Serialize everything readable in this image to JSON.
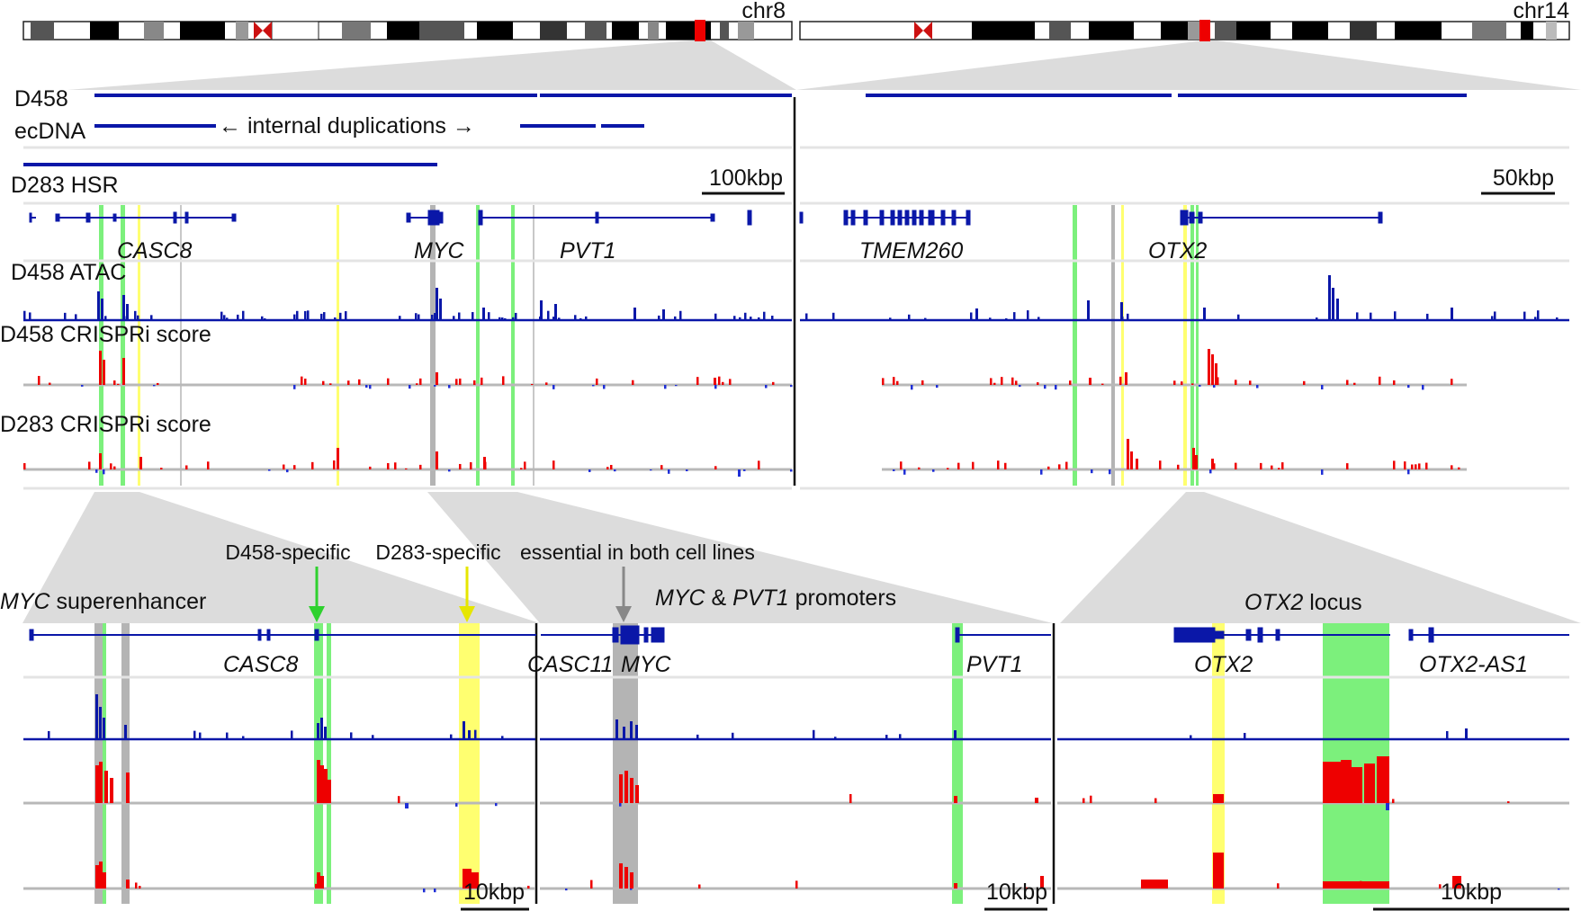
{
  "colors": {
    "gene": "#0a17a8",
    "atac": "#0a17a8",
    "crispr_pos": "#ee0000",
    "crispr_neg": "#1f2fd6",
    "baseline": "#b8b8b8",
    "track_sep": "#e4e4e4",
    "d458_specific": "#7cf07c",
    "d283_specific": "#ffff70",
    "essential_both": "#b4b4b4",
    "zoom_fill": "#dcdcdc",
    "centromere": "#cc1111",
    "highlight_band": "#ee0000"
  },
  "chromosomes": {
    "left": "chr8",
    "right": "chr14"
  },
  "tracks": {
    "d458_ecdna_line1": "D458",
    "d458_ecdna_line2": "ecDNA",
    "internal_dup": "← internal duplications →",
    "d283_hsr": "D283 HSR",
    "d458_atac": "D458 ATAC",
    "d458_crispri": "D458 CRISPRi score",
    "d283_crispri": "D283 CRISPRi score"
  },
  "scalebars": {
    "chr8": "100kbp",
    "chr14": "50kbp",
    "superenhancer": "10kbp",
    "promoters": "10kbp",
    "otx2": "10kbp"
  },
  "genes_top": {
    "casc8": "CASC8",
    "myc": "MYC",
    "pvt1": "PVT1",
    "tmem260": "TMEM260",
    "otx2": "OTX2"
  },
  "annotations": {
    "d458_specific": "D458-specific",
    "d283_specific": "D283-specific",
    "essential": "essential in both cell lines"
  },
  "zoom_titles": {
    "superenhancer_gene": "MYC",
    "superenhancer_rest": " superenhancer",
    "promoters_g1": "MYC",
    "promoters_amp": " & ",
    "promoters_g2": "PVT1",
    "promoters_rest": " promoters",
    "otx2_gene": "OTX2",
    "otx2_rest": " locus"
  },
  "genes_zoom": {
    "casc8": "CASC8",
    "casc11": "CASC11",
    "myc": "MYC",
    "pvt1": "PVT1",
    "otx2": "OTX2",
    "otx2_as1": "OTX2-AS1"
  }
}
